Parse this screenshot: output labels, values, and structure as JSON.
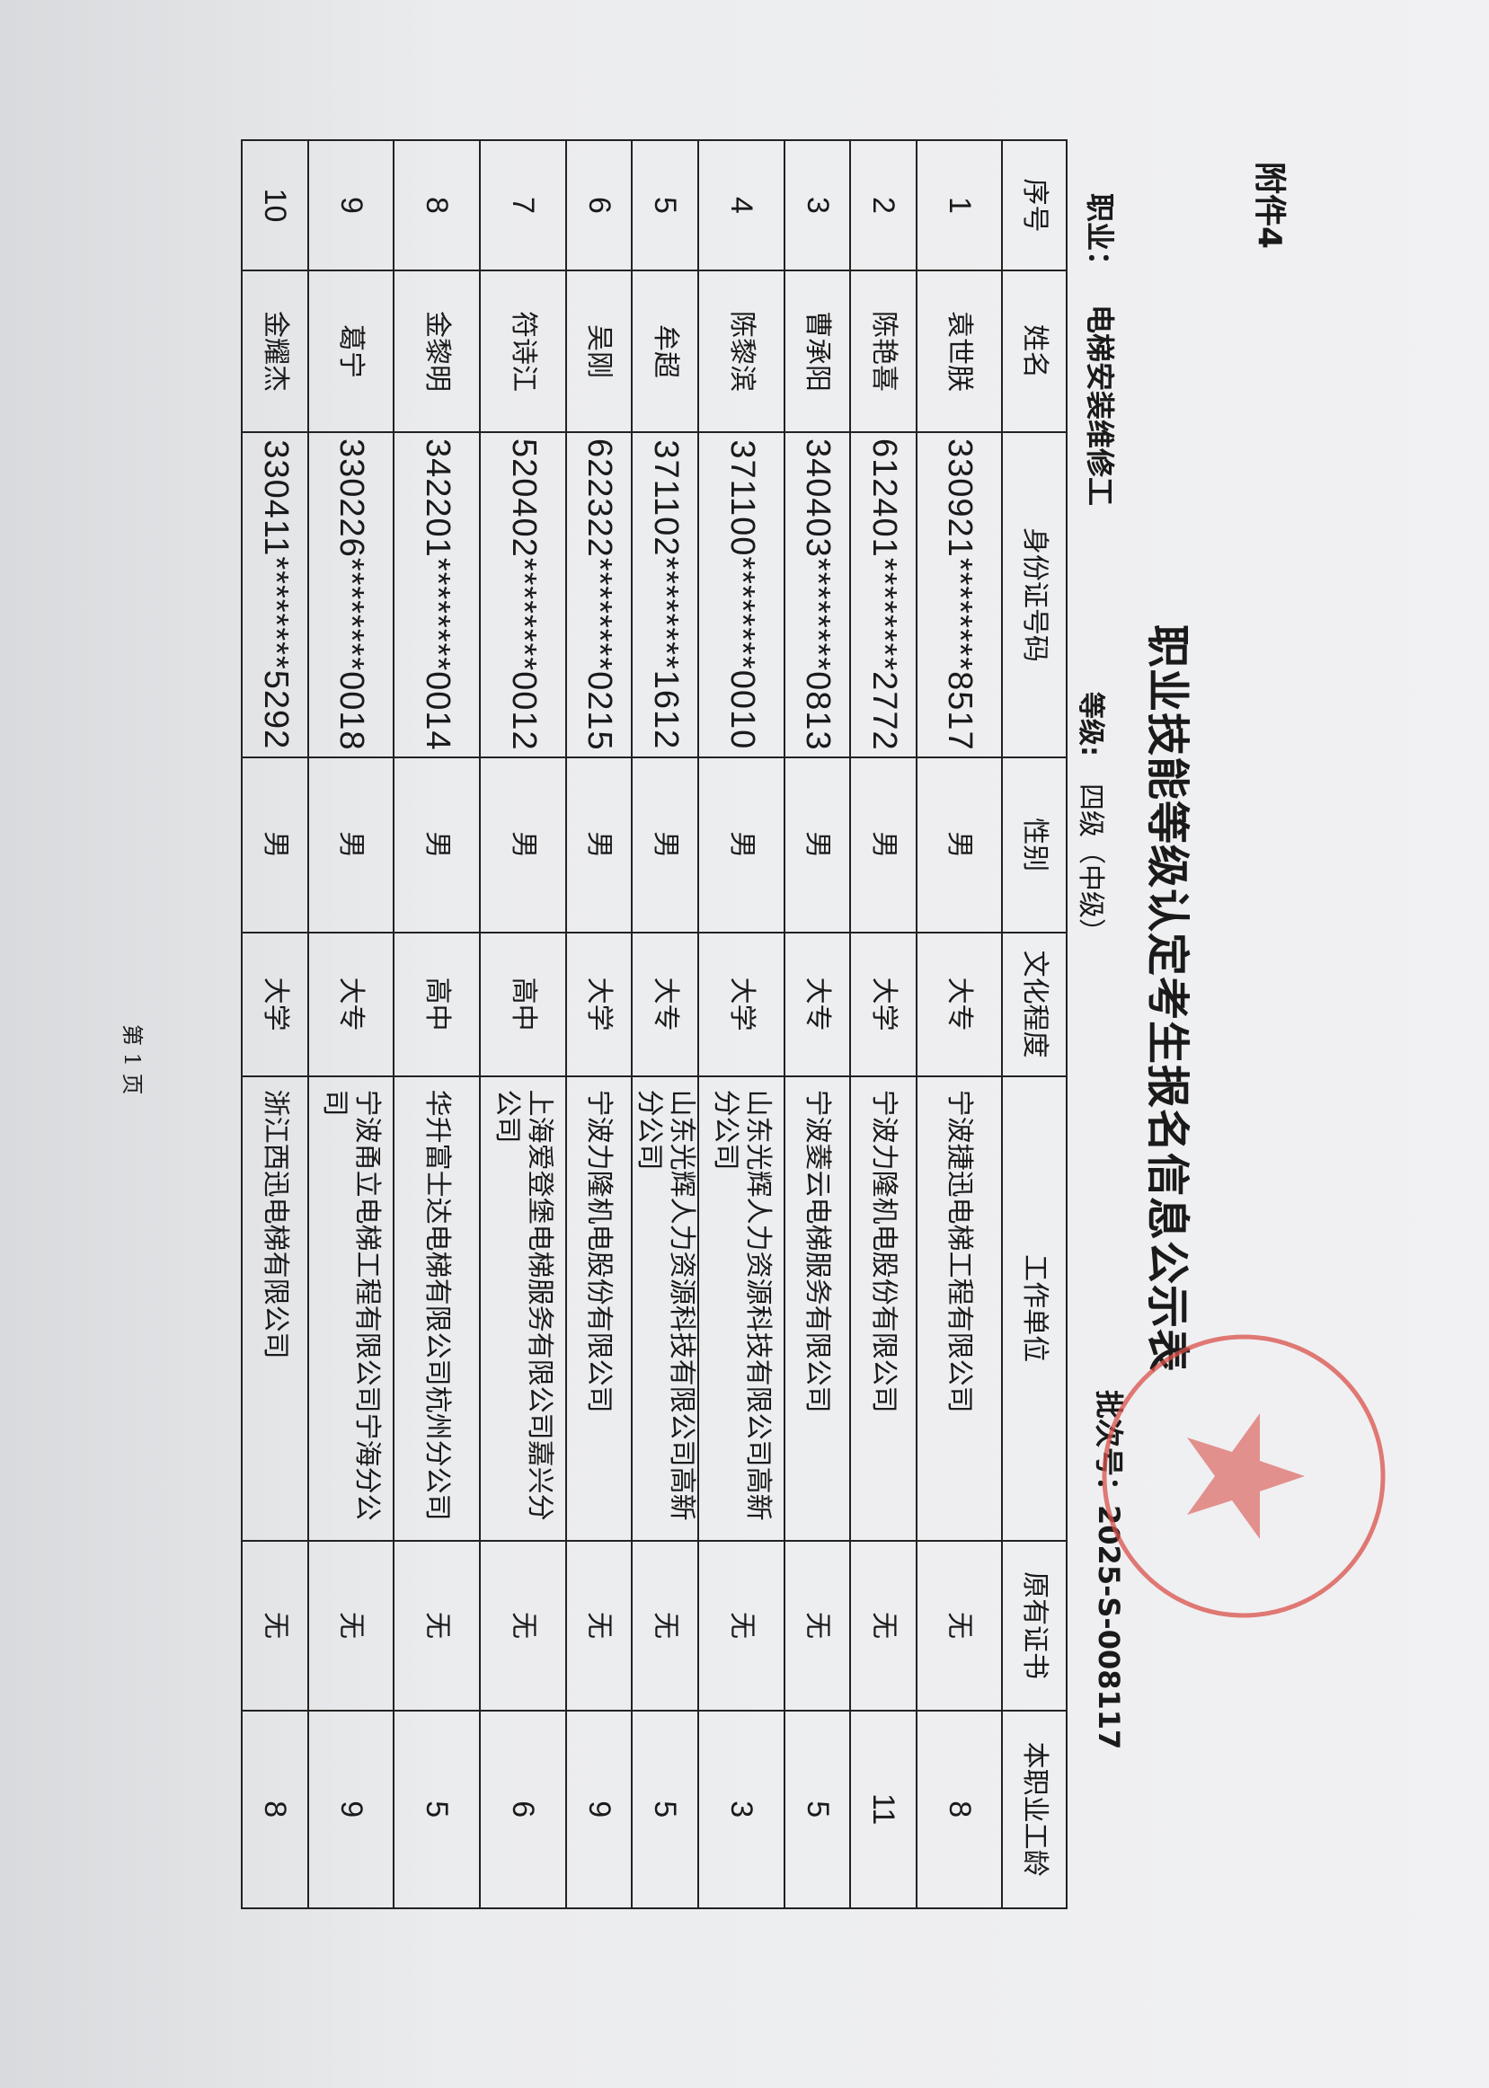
{
  "attachment": "附件4",
  "title": "职业技能等级认定考生报名信息公示表",
  "occupation": {
    "label": "职业：",
    "value": "电梯安装维修工"
  },
  "level": {
    "label": "等级:",
    "value": "四级（中级）"
  },
  "batch": {
    "label": "批次号：",
    "value": "2025-S-008117"
  },
  "table": {
    "headers": [
      "序号",
      "姓名",
      "身份证号码",
      "性别",
      "文化程度",
      "工作单位",
      "原有证书",
      "本职业工龄"
    ],
    "rows": [
      [
        "1",
        "袁世朕",
        "330921********8517",
        "男",
        "大专",
        "宁波捷迅电梯工程有限公司",
        "无",
        "8"
      ],
      [
        "2",
        "陈艳喜",
        "612401********2772",
        "男",
        "大学",
        "宁波力隆机电股份有限公司",
        "无",
        "11"
      ],
      [
        "3",
        "曹承阳",
        "340403********0813",
        "男",
        "大专",
        "宁波菱云电梯服务有限公司",
        "无",
        "5"
      ],
      [
        "4",
        "陈黎滨",
        "371100********0010",
        "男",
        "大学",
        "山东光辉人力资源科技有限公司高新分公司",
        "无",
        "3"
      ],
      [
        "5",
        "牟超",
        "371102********1612",
        "男",
        "大专",
        "山东光辉人力资源科技有限公司高新分公司",
        "无",
        "5"
      ],
      [
        "6",
        "吴刚",
        "622322********0215",
        "男",
        "大学",
        "宁波力隆机电股份有限公司",
        "无",
        "9"
      ],
      [
        "7",
        "符诗江",
        "520402********0012",
        "男",
        "高中",
        "上海爱登堡电梯服务有限公司嘉兴分公司",
        "无",
        "6"
      ],
      [
        "8",
        "金黎明",
        "342201********0014",
        "男",
        "高中",
        "华升富士达电梯有限公司杭州分公司",
        "无",
        "5"
      ],
      [
        "9",
        "葛宁",
        "330226********0018",
        "男",
        "大专",
        "宁波甬立电梯工程有限公司宁海分公司",
        "无",
        "9"
      ],
      [
        "10",
        "金耀杰",
        "330411********5292",
        "男",
        "大学",
        "浙江西迅电梯有限公司",
        "无",
        "8"
      ]
    ]
  },
  "footer": {
    "page": "第 1 页"
  },
  "stamp": {
    "color": "#d9504a",
    "icon": "star-icon"
  }
}
